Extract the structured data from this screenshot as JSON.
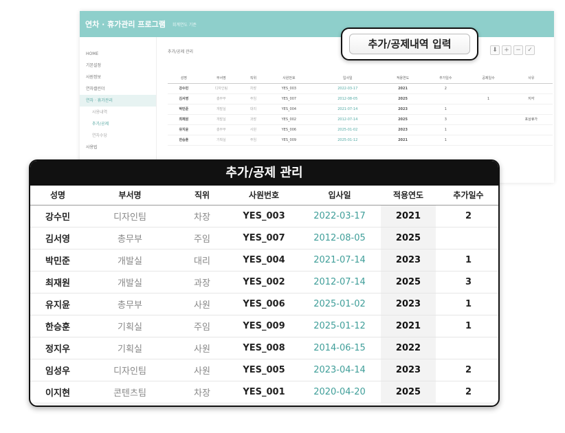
{
  "app": {
    "title": "연차 · 휴가관리 프로그램",
    "subtitle": "회계연도 기준"
  },
  "sidebar": {
    "items": [
      {
        "label": "HOME",
        "type": "main"
      },
      {
        "label": "기본설정",
        "type": "main"
      },
      {
        "label": "사원정보",
        "type": "main"
      },
      {
        "label": "연차캘린더",
        "type": "main"
      },
      {
        "label": "연차 · 휴가관리",
        "type": "active"
      },
      {
        "label": "사용내역",
        "type": "sub"
      },
      {
        "label": "추가/공제",
        "type": "sub-active"
      },
      {
        "label": "연차수당",
        "type": "sub"
      },
      {
        "label": "사용법",
        "type": "main"
      }
    ]
  },
  "content": {
    "breadcrumb": "추가/공제 관리",
    "tools": [
      {
        "icon": "download-icon",
        "glyph": "⬇"
      },
      {
        "icon": "plus-icon",
        "glyph": "+"
      },
      {
        "icon": "minus-icon",
        "glyph": "−"
      },
      {
        "icon": "check-icon",
        "glyph": "✓"
      }
    ]
  },
  "mini_table": {
    "headers": [
      "성명",
      "부서명",
      "직위",
      "사원번호",
      "입사일",
      "적용연도",
      "추가일수",
      "공제일수",
      "사유"
    ],
    "rows": [
      [
        "강수민",
        "디자인팀",
        "차장",
        "YES_003",
        "2022-03-17",
        "2021",
        "2",
        "",
        ""
      ],
      [
        "김서영",
        "총무부",
        "주임",
        "YES_007",
        "2012-08-05",
        "2025",
        "",
        "1",
        "지각"
      ],
      [
        "박민준",
        "개발실",
        "대리",
        "YES_004",
        "2021-07-14",
        "2023",
        "1",
        "",
        ""
      ],
      [
        "최재원",
        "개발실",
        "과장",
        "YES_002",
        "2012-07-14",
        "2025",
        "3",
        "",
        "포상휴가"
      ],
      [
        "유지윤",
        "총무부",
        "사원",
        "YES_006",
        "2025-01-02",
        "2023",
        "1",
        "",
        ""
      ],
      [
        "한승훈",
        "기획실",
        "주임",
        "YES_009",
        "2025-01-12",
        "2021",
        "1",
        "",
        ""
      ]
    ]
  },
  "callout": {
    "label": "추가/공제내역 입력"
  },
  "panel": {
    "title": "추가/공제 관리",
    "headers": [
      "성명",
      "부서명",
      "직위",
      "사원번호",
      "입사일",
      "적용연도",
      "추가일수"
    ],
    "rows": [
      [
        "강수민",
        "디자인팀",
        "차장",
        "YES_003",
        "2022-03-17",
        "2021",
        "2"
      ],
      [
        "김서영",
        "총무부",
        "주임",
        "YES_007",
        "2012-08-05",
        "2025",
        ""
      ],
      [
        "박민준",
        "개발실",
        "대리",
        "YES_004",
        "2021-07-14",
        "2023",
        "1"
      ],
      [
        "최재원",
        "개발실",
        "과장",
        "YES_002",
        "2012-07-14",
        "2025",
        "3"
      ],
      [
        "유지윤",
        "총무부",
        "사원",
        "YES_006",
        "2025-01-02",
        "2023",
        "1"
      ],
      [
        "한승훈",
        "기획실",
        "주임",
        "YES_009",
        "2025-01-12",
        "2021",
        "1"
      ],
      [
        "정지우",
        "기획실",
        "사원",
        "YES_008",
        "2014-06-15",
        "2022",
        ""
      ],
      [
        "임성우",
        "디자인팀",
        "사원",
        "YES_005",
        "2023-04-14",
        "2023",
        "2"
      ],
      [
        "이지현",
        "콘텐츠팀",
        "차장",
        "YES_001",
        "2020-04-20",
        "2025",
        "2"
      ]
    ]
  },
  "colors": {
    "header_teal": "#8ecfcb",
    "date_teal": "#3f9e99",
    "panel_title_bg": "#111111"
  }
}
